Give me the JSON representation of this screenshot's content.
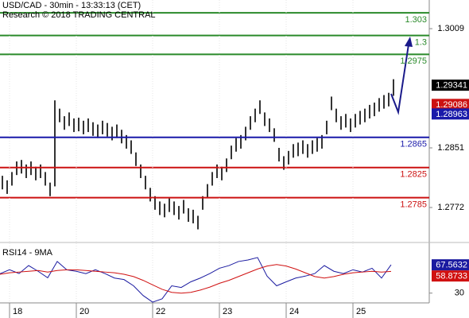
{
  "header": {
    "title": "USD/CAD - 30min - 13:33:13 (CET)",
    "subtitle": "Research © 2018 TRADING CENTRAL"
  },
  "chart_data": [
    {
      "type": "candlestick",
      "xlim": [
        0,
        90
      ],
      "ylim": [
        1.2733,
        1.3047
      ],
      "yticks": [
        1.3009,
        1.2851,
        1.2772
      ],
      "color": "#000000",
      "high": [
        1.2814,
        1.2808,
        1.2819,
        1.2833,
        1.2835,
        1.2829,
        1.2833,
        1.2826,
        1.2829,
        1.2819,
        1.2805,
        1.2914,
        1.2903,
        1.2893,
        1.2898,
        1.289,
        1.2891,
        1.2887,
        1.289,
        1.2885,
        1.2882,
        1.2887,
        1.2884,
        1.2879,
        1.2882,
        1.2875,
        1.2868,
        1.2861,
        1.2845,
        1.2829,
        1.2814,
        1.2798,
        1.2787,
        1.278,
        1.2777,
        1.2784,
        1.278,
        1.2774,
        1.2782,
        1.2771,
        1.2769,
        1.2761,
        1.2787,
        1.2803,
        1.2819,
        1.2829,
        1.2826,
        1.2837,
        1.2854,
        1.2864,
        1.2868,
        1.2879,
        1.2893,
        1.2903,
        1.2914,
        1.2898,
        1.289,
        1.2877,
        1.2851,
        1.284,
        1.2847,
        1.2856,
        1.2858,
        1.2861,
        1.2856,
        1.2861,
        1.2864,
        1.2868,
        1.2887,
        1.2919,
        1.2903,
        1.2893,
        1.2896,
        1.289,
        1.2896,
        1.29,
        1.2903,
        1.2908,
        1.2911,
        1.2917,
        1.2921,
        1.2924,
        1.2942
      ],
      "low": [
        1.2796,
        1.279,
        1.2801,
        1.2815,
        1.2817,
        1.2811,
        1.2815,
        1.2808,
        1.2811,
        1.2801,
        1.2787,
        1.28,
        1.2885,
        1.2875,
        1.288,
        1.2872,
        1.2873,
        1.2869,
        1.2872,
        1.2867,
        1.2864,
        1.2869,
        1.2866,
        1.2861,
        1.2864,
        1.2857,
        1.285,
        1.2843,
        1.2827,
        1.2811,
        1.2796,
        1.278,
        1.2769,
        1.2762,
        1.2759,
        1.2766,
        1.2762,
        1.2756,
        1.2764,
        1.2753,
        1.2751,
        1.2743,
        1.2769,
        1.2785,
        1.2801,
        1.2811,
        1.2808,
        1.2819,
        1.2836,
        1.2846,
        1.285,
        1.2861,
        1.2875,
        1.2885,
        1.2896,
        1.288,
        1.2872,
        1.2859,
        1.2833,
        1.2822,
        1.2829,
        1.2838,
        1.284,
        1.2843,
        1.2838,
        1.2843,
        1.2846,
        1.285,
        1.2869,
        1.2901,
        1.2885,
        1.2875,
        1.2878,
        1.2872,
        1.2878,
        1.2882,
        1.2885,
        1.289,
        1.2893,
        1.2899,
        1.2903,
        1.2906,
        1.292
      ],
      "levels": [
        {
          "value": 1.303,
          "color": "#2a8a2a"
        },
        {
          "value": 1.3,
          "color": "#2a8a2a"
        },
        {
          "value": 1.2975,
          "color": "#2a8a2a"
        },
        {
          "value": 1.2865,
          "color": "#1a1aaa"
        },
        {
          "value": 1.2825,
          "color": "#cc1111"
        },
        {
          "value": 1.2785,
          "color": "#cc1111"
        }
      ],
      "price_tags": [
        {
          "value": 1.29341,
          "color": "#000000"
        },
        {
          "value": 1.29086,
          "color": "#cc1111"
        },
        {
          "value": 1.28963,
          "color": "#1a1aaa"
        }
      ]
    },
    {
      "type": "line",
      "title": "RSI14 - 9MA",
      "xlim": [
        0,
        90
      ],
      "ylim": [
        17,
        92
      ],
      "yticks": [
        30
      ],
      "x": [
        0,
        2,
        4,
        6,
        8,
        10,
        12,
        14,
        16,
        18,
        20,
        22,
        24,
        26,
        28,
        30,
        32,
        34,
        36,
        38,
        40,
        42,
        44,
        46,
        48,
        50,
        52,
        54,
        56,
        58,
        60,
        62,
        64,
        66,
        68,
        70,
        72,
        74,
        76,
        78,
        80,
        82
      ],
      "xticks": [
        {
          "value": 2,
          "label": "18"
        },
        {
          "value": 16,
          "label": "20"
        },
        {
          "value": 32,
          "label": "22"
        },
        {
          "value": 46,
          "label": "23"
        },
        {
          "value": 60,
          "label": "24"
        },
        {
          "value": 74,
          "label": "25"
        }
      ],
      "series": [
        {
          "color": "#1a1aa0",
          "values": [
            55.8,
            61,
            56,
            66.6,
            59,
            50.4,
            72,
            61,
            59,
            55.8,
            61,
            56,
            50,
            48,
            39.7,
            26.8,
            18,
            22.5,
            39.7,
            37.5,
            45,
            50,
            56,
            63,
            66.6,
            72,
            74,
            77.3,
            52.6,
            39.7,
            45,
            50,
            52.6,
            56,
            66.6,
            59,
            56,
            61,
            58,
            63,
            50,
            67.6
          ]
        },
        {
          "color": "#d01010",
          "values": [
            55,
            57,
            58,
            59,
            60,
            58,
            60,
            61,
            61,
            60,
            59,
            58,
            57,
            55,
            52,
            47,
            41,
            35,
            31,
            30,
            31,
            34,
            38,
            43,
            47,
            52,
            57,
            62,
            66,
            68,
            66,
            62,
            57,
            52,
            50,
            52,
            55,
            57,
            58,
            59,
            58,
            58.9
          ]
        }
      ],
      "price_tags": [
        {
          "value": 67.5632,
          "color": "#1a1aa0"
        },
        {
          "value": 58.8733,
          "color": "#d01010"
        }
      ]
    }
  ]
}
